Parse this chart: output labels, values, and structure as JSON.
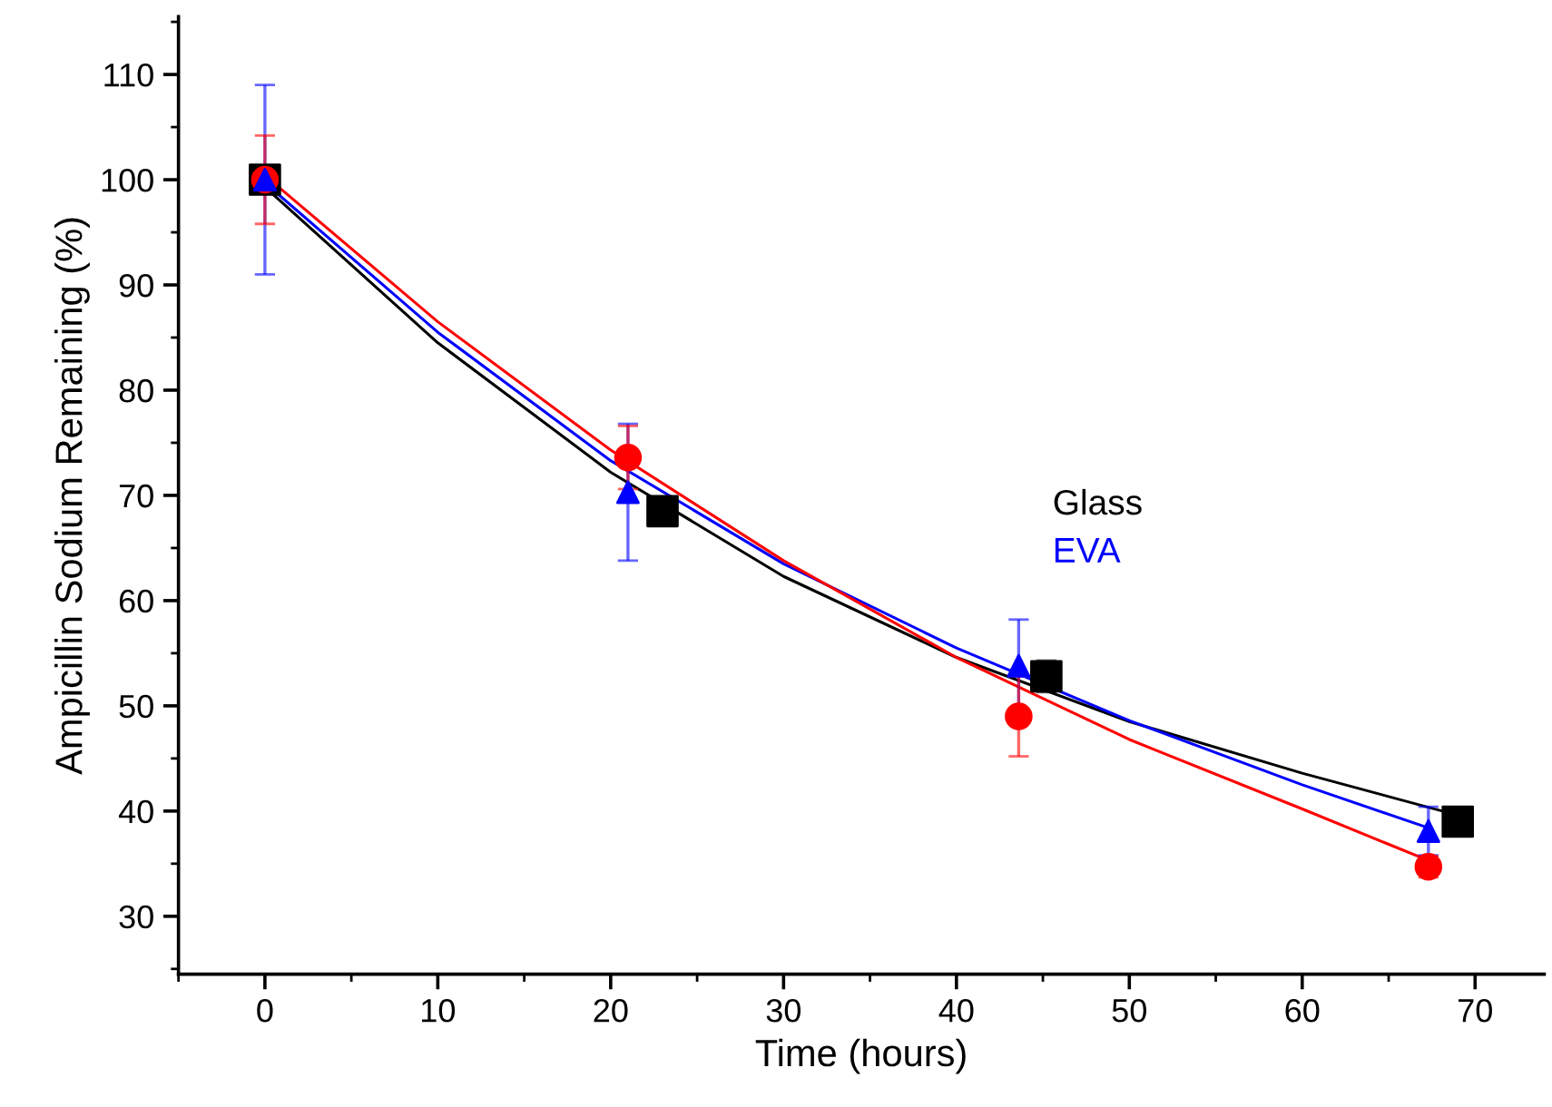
{
  "chart_data": {
    "type": "scatter",
    "xlabel": "Time (hours)",
    "ylabel": "Ampicillin Sodium Remaining (%)",
    "xlim": [
      -5,
      74
    ],
    "xticks": [
      0,
      10,
      20,
      30,
      40,
      50,
      60,
      70
    ],
    "ylim": [
      24.5,
      115.5
    ],
    "yticks": [
      30,
      40,
      50,
      60,
      70,
      80,
      90,
      100,
      110
    ],
    "grid": false,
    "legend": false,
    "series": [
      {
        "name": "Glass",
        "color": "#000000",
        "marker": "square",
        "x": [
          0,
          23,
          45.2,
          69
        ],
        "values": [
          100,
          68.5,
          52.8,
          39
        ],
        "errors": [
          1,
          null,
          1.5,
          null
        ]
      },
      {
        "name": "EVA",
        "color": "#0000ff",
        "marker": "triangle",
        "x": [
          0,
          21,
          43.6,
          67.3
        ],
        "values": [
          100,
          70.3,
          53.8,
          38.1
        ],
        "errors": [
          9,
          6.5,
          4.4,
          2.3
        ]
      },
      {
        "color": "#ff0000",
        "marker": "circle",
        "x": [
          0,
          21,
          43.6,
          67.3
        ],
        "values": [
          100,
          73.6,
          49,
          34.7
        ],
        "errors": [
          4.2,
          3,
          3.8,
          1
        ]
      },
      {
        "type": "line",
        "color": "#000000",
        "marker": "none",
        "x": [
          0,
          10,
          20,
          30,
          40,
          50,
          60,
          69
        ],
        "values": [
          99.3,
          84.5,
          72.2,
          62.3,
          54.6,
          48.5,
          43.6,
          39.6
        ]
      },
      {
        "type": "line",
        "color": "#0000ff",
        "marker": "none",
        "x": [
          0,
          10,
          20,
          30,
          40,
          50,
          60,
          67.3
        ],
        "values": [
          99.7,
          85.5,
          73.3,
          63.5,
          55.5,
          48.6,
          42.5,
          38.4
        ]
      },
      {
        "type": "line",
        "color": "#ff0000",
        "marker": "none",
        "x": [
          0,
          10,
          20,
          30,
          40,
          50,
          60,
          67.3
        ],
        "values": [
          100.4,
          86.5,
          74.3,
          63.8,
          54.6,
          46.8,
          40.2,
          35.3
        ]
      }
    ]
  }
}
